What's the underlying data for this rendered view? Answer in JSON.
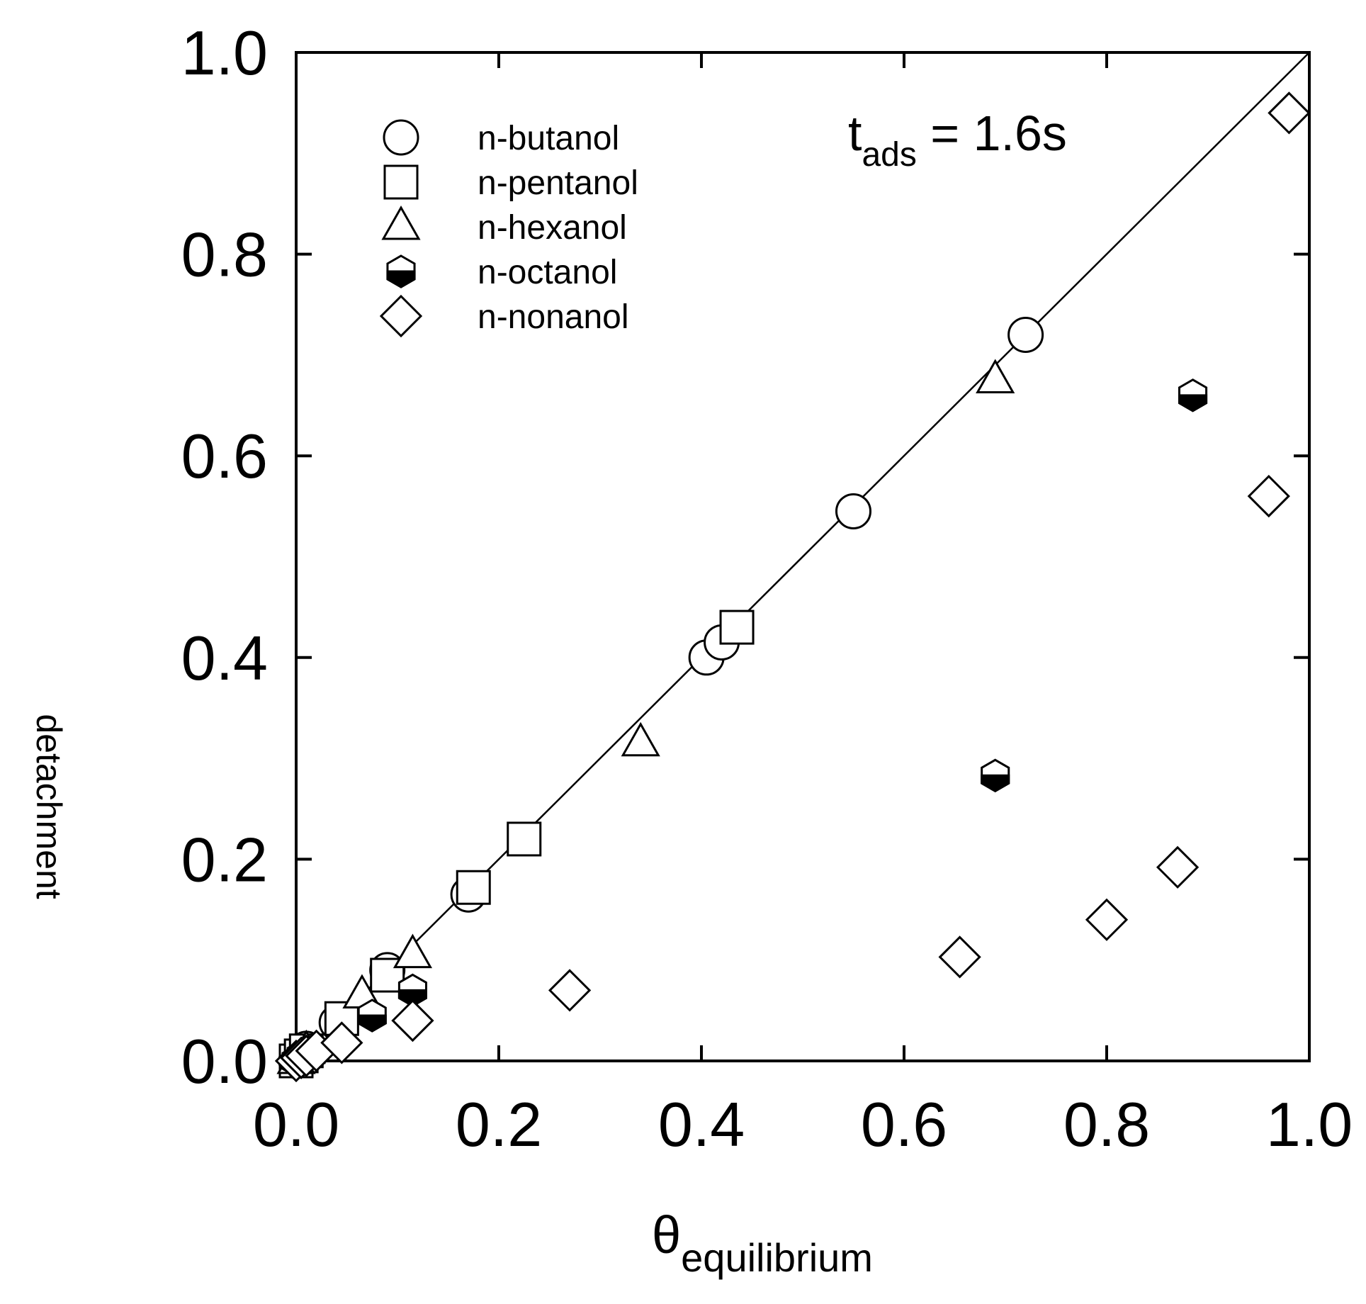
{
  "chart_data": {
    "type": "scatter",
    "title": "",
    "xlabel": "θ",
    "xlabel_subscript": "equilibrium",
    "ylabel": "detachment",
    "xlim": [
      0.0,
      1.0
    ],
    "ylim": [
      0.0,
      1.0
    ],
    "x_ticks": [
      0.0,
      0.2,
      0.4,
      0.6,
      0.8,
      1.0
    ],
    "y_ticks": [
      0.0,
      0.2,
      0.4,
      0.6,
      0.8,
      1.0
    ],
    "x_tick_labels": [
      "0.0",
      "0.2",
      "0.4",
      "0.6",
      "0.8",
      "1.0"
    ],
    "y_tick_labels": [
      "0.0",
      "0.2",
      "0.4",
      "0.6",
      "0.8",
      "1.0"
    ],
    "grid": false,
    "legend_position": "top-left",
    "annotation": {
      "main": "t",
      "subscript": "ads",
      "rest": " = 1.6s",
      "position": "top-right"
    },
    "reference_line": {
      "style": "solid",
      "x": [
        0.0,
        1.0
      ],
      "y": [
        0.0,
        1.0
      ]
    },
    "series": [
      {
        "name": "n-butanol",
        "marker": "circle",
        "fill": "open",
        "x": [
          0.0,
          0.005,
          0.01,
          0.04,
          0.09,
          0.17,
          0.405,
          0.42,
          0.55,
          0.72
        ],
        "y": [
          0.0,
          0.005,
          0.012,
          0.038,
          0.09,
          0.165,
          0.4,
          0.415,
          0.545,
          0.72
        ]
      },
      {
        "name": "n-pentanol",
        "marker": "square",
        "fill": "open",
        "x": [
          0.0,
          0.005,
          0.01,
          0.045,
          0.09,
          0.175,
          0.225,
          0.435
        ],
        "y": [
          0.0,
          0.005,
          0.01,
          0.042,
          0.085,
          0.172,
          0.22,
          0.43
        ]
      },
      {
        "name": "n-hexanol",
        "marker": "triangle",
        "fill": "open",
        "x": [
          0.0,
          0.01,
          0.065,
          0.115,
          0.34,
          0.69
        ],
        "y": [
          0.0,
          0.01,
          0.065,
          0.105,
          0.315,
          0.675
        ]
      },
      {
        "name": "n-octanol",
        "marker": "hexagon-half",
        "fill": "half",
        "x": [
          0.0,
          0.005,
          0.075,
          0.115,
          0.69,
          0.885
        ],
        "y": [
          0.0,
          0.005,
          0.045,
          0.07,
          0.283,
          0.66
        ]
      },
      {
        "name": "n-nonanol",
        "marker": "diamond",
        "fill": "open",
        "x": [
          0.0,
          0.005,
          0.01,
          0.02,
          0.045,
          0.115,
          0.27,
          0.655,
          0.8,
          0.87,
          0.96,
          0.98
        ],
        "y": [
          0.0,
          0.003,
          0.005,
          0.01,
          0.018,
          0.04,
          0.07,
          0.103,
          0.14,
          0.192,
          0.56,
          0.94
        ]
      }
    ]
  }
}
